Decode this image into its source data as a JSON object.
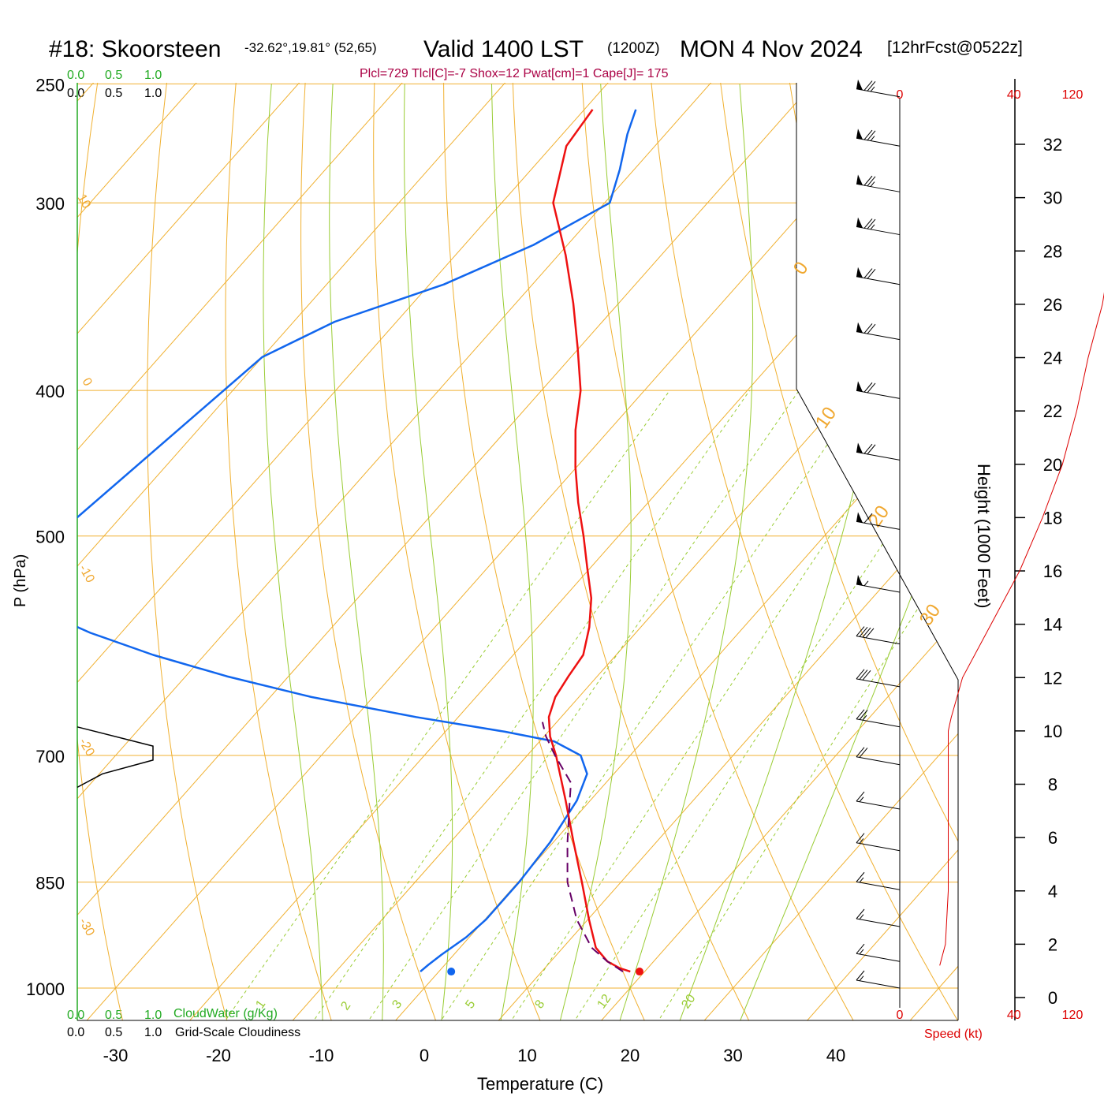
{
  "header": {
    "station": "#18: Skoorsteen",
    "coords": "-32.62°,19.81° (52,65)",
    "valid": "Valid 1400 LST",
    "zulu": "(1200Z)",
    "date": "MON 4 Nov 2024",
    "forecast": "[12hrFcst@0522z]",
    "indices": "Plcl=729 Tlcl[C]=-7 Shox=12 Pwat[cm]=1 Cape[J]= 175"
  },
  "cloud_panel": {
    "top_green": [
      "0.0",
      "0.5",
      "1.0"
    ],
    "top_black": [
      "0.0",
      "0.5",
      "1.0"
    ],
    "bottom_green": [
      "0.0",
      "0.5",
      "1.0"
    ],
    "bottom_black": [
      "0.0",
      "0.5",
      "1.0"
    ],
    "cloudwater_label": "CloudWater (g/Kg)",
    "cloudiness_label": "Grid-Scale Cloudiness"
  },
  "axes": {
    "xlabel": "Temperature (C)",
    "ylabel": "P (hPa)",
    "height_label": "Height (1000 Feet)",
    "speed_label": "Speed (kt)"
  },
  "colors": {
    "temperature": "#ee1111",
    "dewpoint": "#1166ee",
    "parcel": "#660066",
    "isotherm": "#f0b030",
    "dry_adiabat": "#f0b030",
    "moist_adiabat": "#99cc33",
    "mixing_ratio": "#99cc33",
    "cloudwater": "#22aa22",
    "wind_speed": "#dd0000"
  },
  "chart_data": {
    "type": "line",
    "title": "#18: Skoorsteen Valid 1400 LST (1200Z) MON 4 Nov 2024 [12hrFcst@0522z]",
    "x_ticks": [
      -30,
      -20,
      -10,
      0,
      10,
      20,
      30,
      40
    ],
    "pressure_ticks": [
      250,
      300,
      400,
      500,
      700,
      850,
      1000
    ],
    "height_ticks": [
      0,
      2,
      4,
      6,
      8,
      10,
      12,
      14,
      16,
      18,
      20,
      22,
      24,
      26,
      28,
      30,
      32
    ],
    "speed_ticks": [
      0,
      40,
      80,
      120
    ],
    "isotherm_labels": [
      "10",
      "0",
      "-10",
      "-20",
      "-30",
      "0",
      "10",
      "20",
      "30"
    ],
    "mixing_ratio_labels": [
      "1",
      "2",
      "3",
      "5",
      "8",
      "12",
      "20"
    ],
    "series": [
      {
        "name": "temperature",
        "pressure_hPa": [
          975,
          970,
          960,
          940,
          900,
          850,
          800,
          750,
          700,
          680,
          660,
          640,
          620,
          600,
          575,
          550,
          525,
          500,
          475,
          450,
          425,
          400,
          375,
          350,
          325,
          300,
          275,
          260
        ],
        "temp_C": [
          18.6,
          17.3,
          15.5,
          13.2,
          10.1,
          6.2,
          2.0,
          -2.4,
          -7.2,
          -9.4,
          -11.2,
          -12.3,
          -12.8,
          -13.2,
          -15.0,
          -17.3,
          -20.3,
          -23.4,
          -26.8,
          -30.1,
          -33.3,
          -36.2,
          -40.1,
          -44.4,
          -49.3,
          -55.0,
          -58.6,
          -59.2
        ]
      },
      {
        "name": "dewpoint",
        "pressure_hPa": [
          975,
          965,
          950,
          925,
          900,
          850,
          800,
          750,
          720,
          700,
          685,
          675,
          660,
          640,
          620,
          600,
          580,
          560,
          540,
          380,
          360,
          340,
          320,
          300,
          285,
          270,
          260
        ],
        "temp_C": [
          -1.8,
          -1.6,
          -1.2,
          -0.3,
          0.1,
          0.1,
          -0.3,
          -1.3,
          -2.6,
          -4.8,
          -8.6,
          -14.2,
          -24.1,
          -36.0,
          -46.0,
          -55.0,
          -63.0,
          -70.0,
          -76.0,
          -70.0,
          -66.0,
          -58.6,
          -53.3,
          -49.5,
          -51.4,
          -53.7,
          -55.0
        ]
      },
      {
        "name": "parcel",
        "pressure_hPa": [
          975,
          960,
          940,
          900,
          850,
          800,
          750,
          730,
          700,
          680,
          665
        ],
        "temp_C": [
          17.9,
          15.5,
          12.8,
          8.9,
          4.8,
          1.4,
          -2.0,
          -3.4,
          -7.3,
          -9.8,
          -11.4
        ]
      }
    ],
    "surface_markers": [
      {
        "name": "surface temperature",
        "temp_C": 19.5,
        "pressure_hPa": 975
      },
      {
        "name": "surface dewpoint",
        "temp_C": 1.2,
        "pressure_hPa": 975
      }
    ],
    "cloud_fraction": {
      "pressure_hPa": [
        670,
        690,
        705,
        720,
        735
      ],
      "fraction": [
        0.0,
        0.3,
        0.3,
        0.1,
        0.0
      ]
    },
    "wind_speed_profile": {
      "height_kft": [
        1.2,
        2,
        4,
        6,
        8,
        10,
        10.5,
        12,
        14,
        16,
        18,
        20,
        22,
        24,
        26,
        28,
        30,
        32,
        33.5
      ],
      "speed_kt": [
        14,
        16,
        17,
        17,
        17,
        17,
        18,
        22,
        32,
        42,
        50,
        57,
        62,
        66,
        71,
        74,
        78,
        80,
        79
      ]
    },
    "wind_barbs": {
      "pressure_hPa": [
        255,
        275,
        295,
        315,
        340,
        370,
        405,
        445,
        495,
        545,
        590,
        630,
        670,
        710,
        760,
        810,
        860,
        910,
        960,
        1000
      ],
      "speed_kt": [
        75,
        75,
        75,
        75,
        70,
        70,
        70,
        70,
        60,
        55,
        40,
        30,
        25,
        20,
        15,
        15,
        15,
        15,
        15,
        15
      ]
    }
  }
}
